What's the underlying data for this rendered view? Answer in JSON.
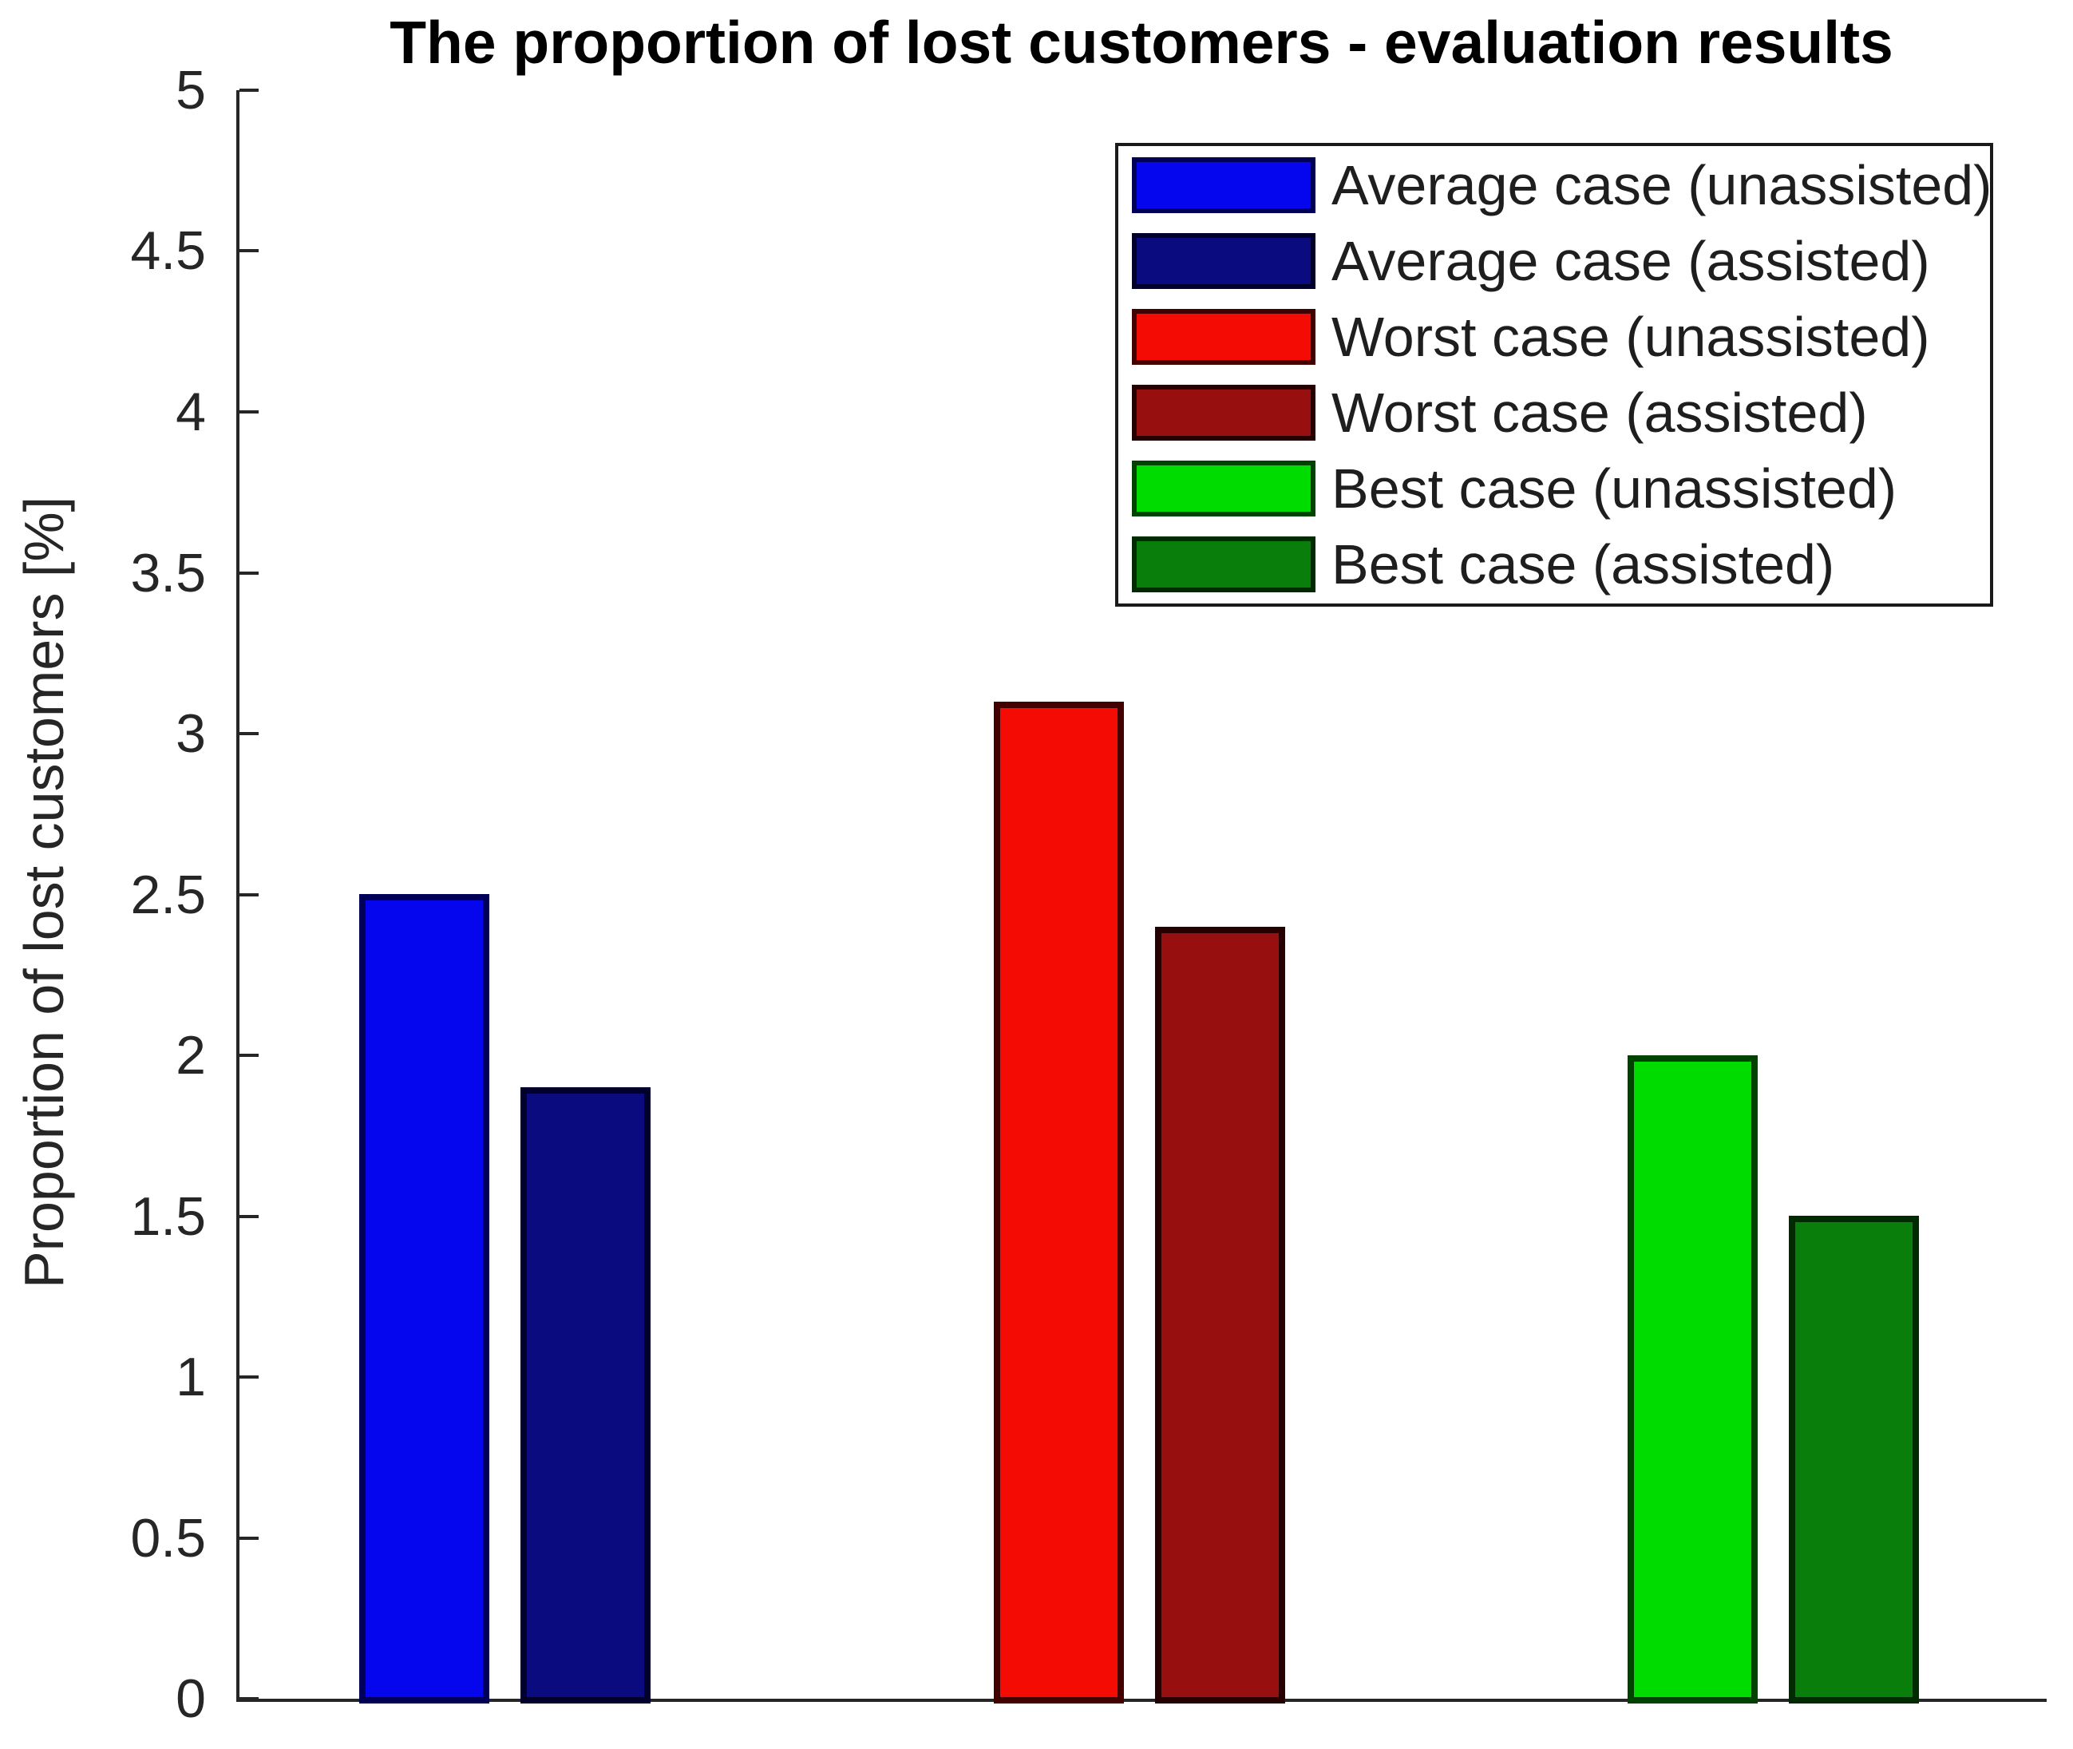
{
  "figure": {
    "background": "#ffffff"
  },
  "chart_data": {
    "type": "bar",
    "title": "The proportion of lost customers - evaluation results",
    "xlabel": "",
    "ylabel": "Proportion of lost customers [%]",
    "ylim": [
      0,
      5
    ],
    "yticks": [
      0,
      0.5,
      1,
      1.5,
      2,
      2.5,
      3,
      3.5,
      4,
      4.5,
      5
    ],
    "xticks": [],
    "grid": false,
    "legend_position": "top-right",
    "groups": [
      "Average case",
      "Worst case",
      "Best case"
    ],
    "series": [
      {
        "label": "Average case (unassisted)",
        "group": 0,
        "slot": 0,
        "value": 2.5,
        "fill": "#0505ee",
        "edge": "#000058"
      },
      {
        "label": "Average case (assisted)",
        "group": 0,
        "slot": 1,
        "value": 1.9,
        "fill": "#0b0b80",
        "edge": "#00002a"
      },
      {
        "label": "Worst case (unassisted)",
        "group": 1,
        "slot": 0,
        "value": 3.1,
        "fill": "#f40c04",
        "edge": "#420000"
      },
      {
        "label": "Worst case (assisted)",
        "group": 1,
        "slot": 1,
        "value": 2.4,
        "fill": "#970f0f",
        "edge": "#260000"
      },
      {
        "label": "Best case (unassisted)",
        "group": 2,
        "slot": 0,
        "value": 2.0,
        "fill": "#00dc00",
        "edge": "#004200"
      },
      {
        "label": "Best case (assisted)",
        "group": 2,
        "slot": 1,
        "value": 1.5,
        "fill": "#0a7e0a",
        "edge": "#002b00"
      }
    ]
  }
}
